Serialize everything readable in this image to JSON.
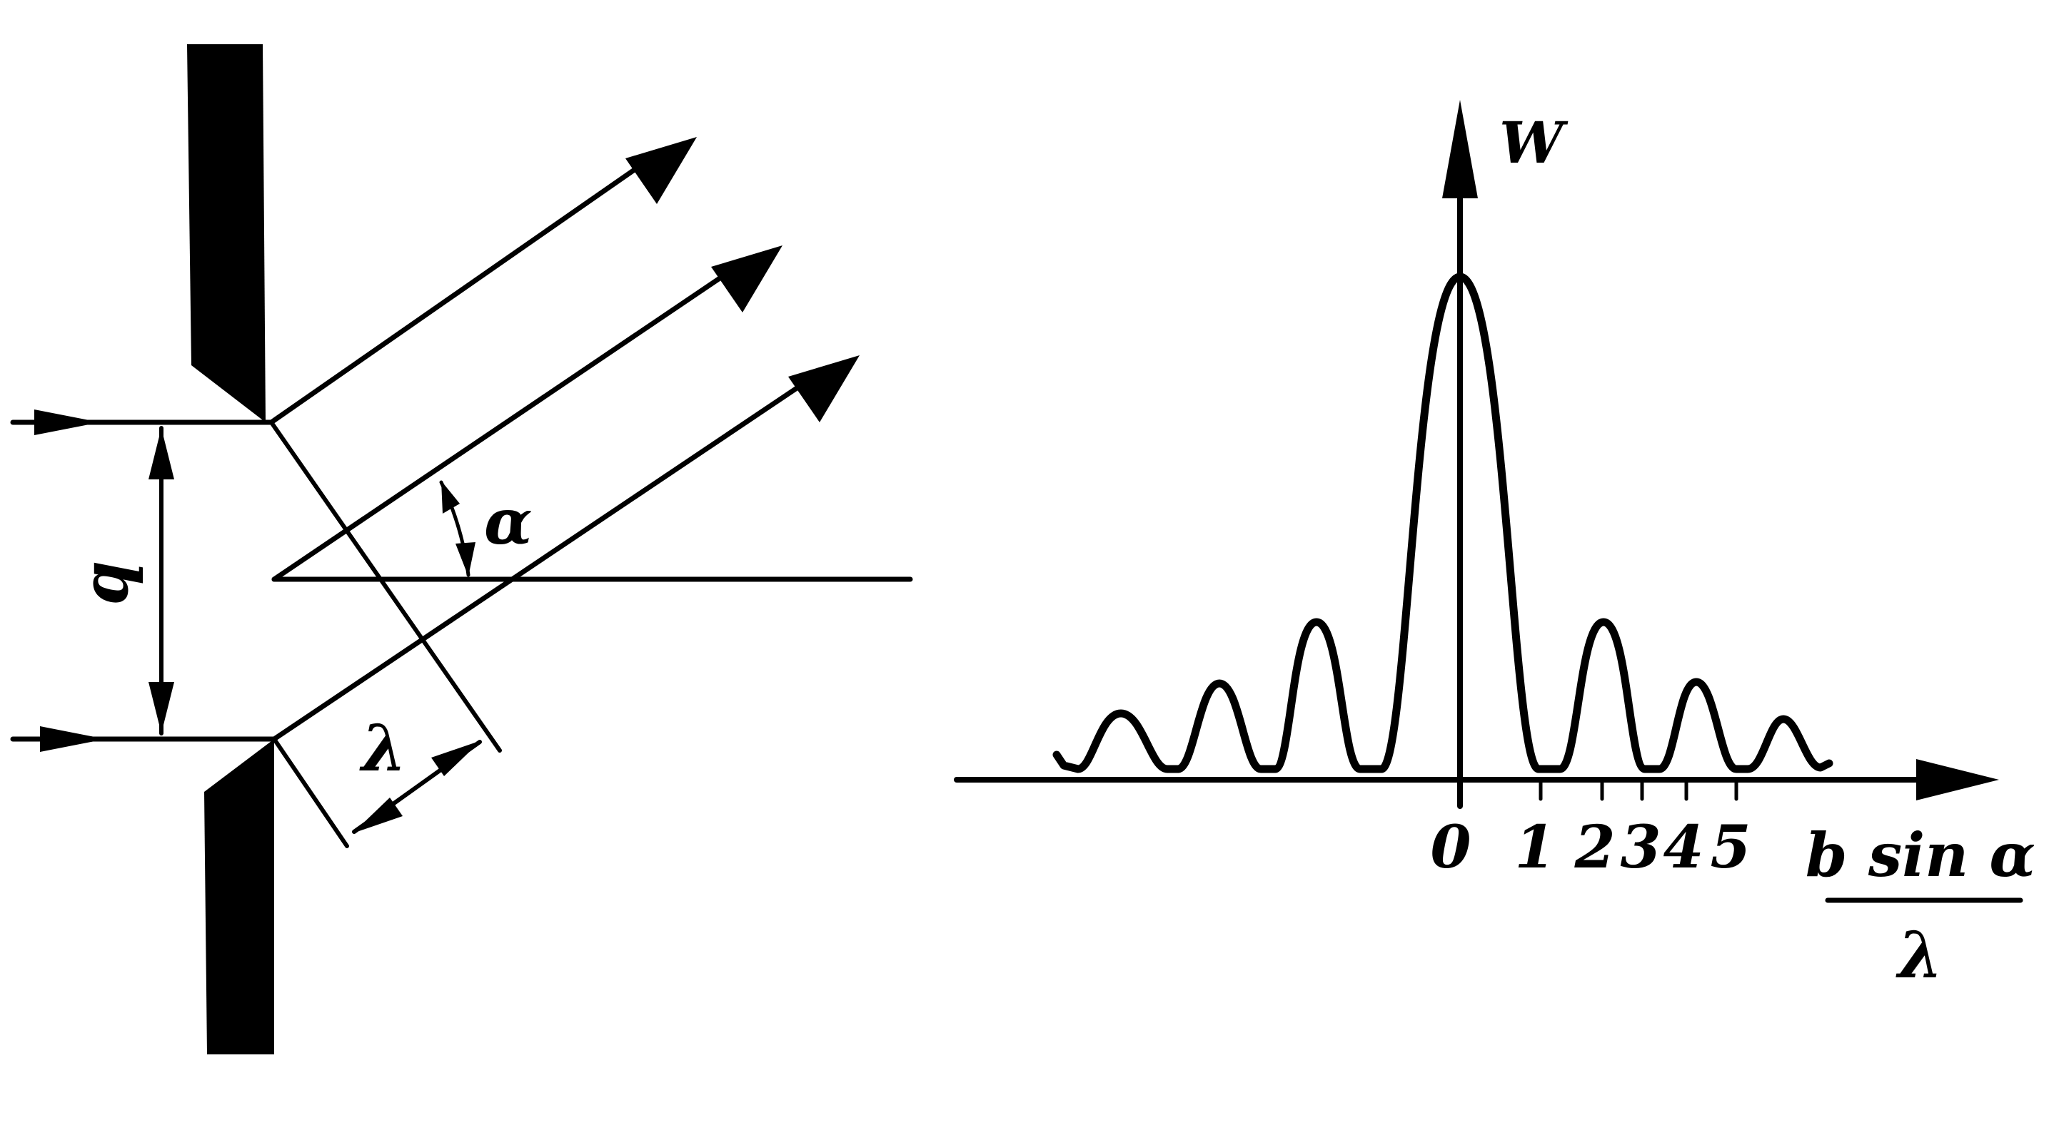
{
  "slit_diagram": {
    "slit_width_label": "b",
    "angle_label": "α",
    "wavelength_label": "λ"
  },
  "intensity_graph": {
    "y_axis_label": "W",
    "x_axis_label_numerator": "b sin α",
    "x_axis_label_denominator": "λ",
    "tick_labels": [
      "0",
      "1",
      "2",
      "3",
      "4",
      "5"
    ]
  },
  "colors": {
    "ink": "#000000",
    "background": "#ffffff"
  }
}
